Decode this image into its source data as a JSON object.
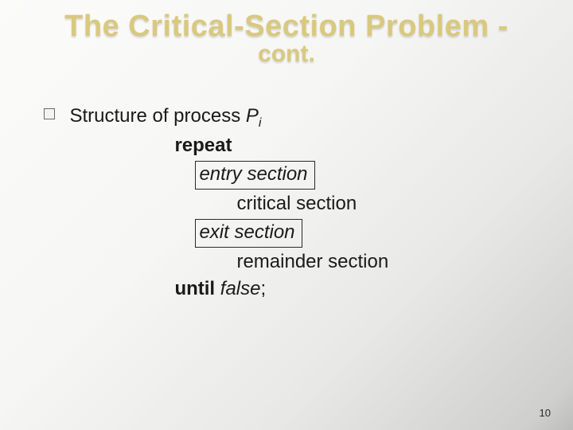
{
  "title": {
    "main": "The Critical-Section Problem -",
    "sub": "cont."
  },
  "bullet": {
    "structure_prefix": "Structure of process ",
    "process_var": "P",
    "process_subscript": "i"
  },
  "code": {
    "repeat": "repeat",
    "entry": "entry section",
    "critical": "critical section",
    "exit": "exit section",
    "remainder": "remainder section",
    "until": "until",
    "false": " false",
    "semicolon": ";"
  },
  "page_number": "10"
}
